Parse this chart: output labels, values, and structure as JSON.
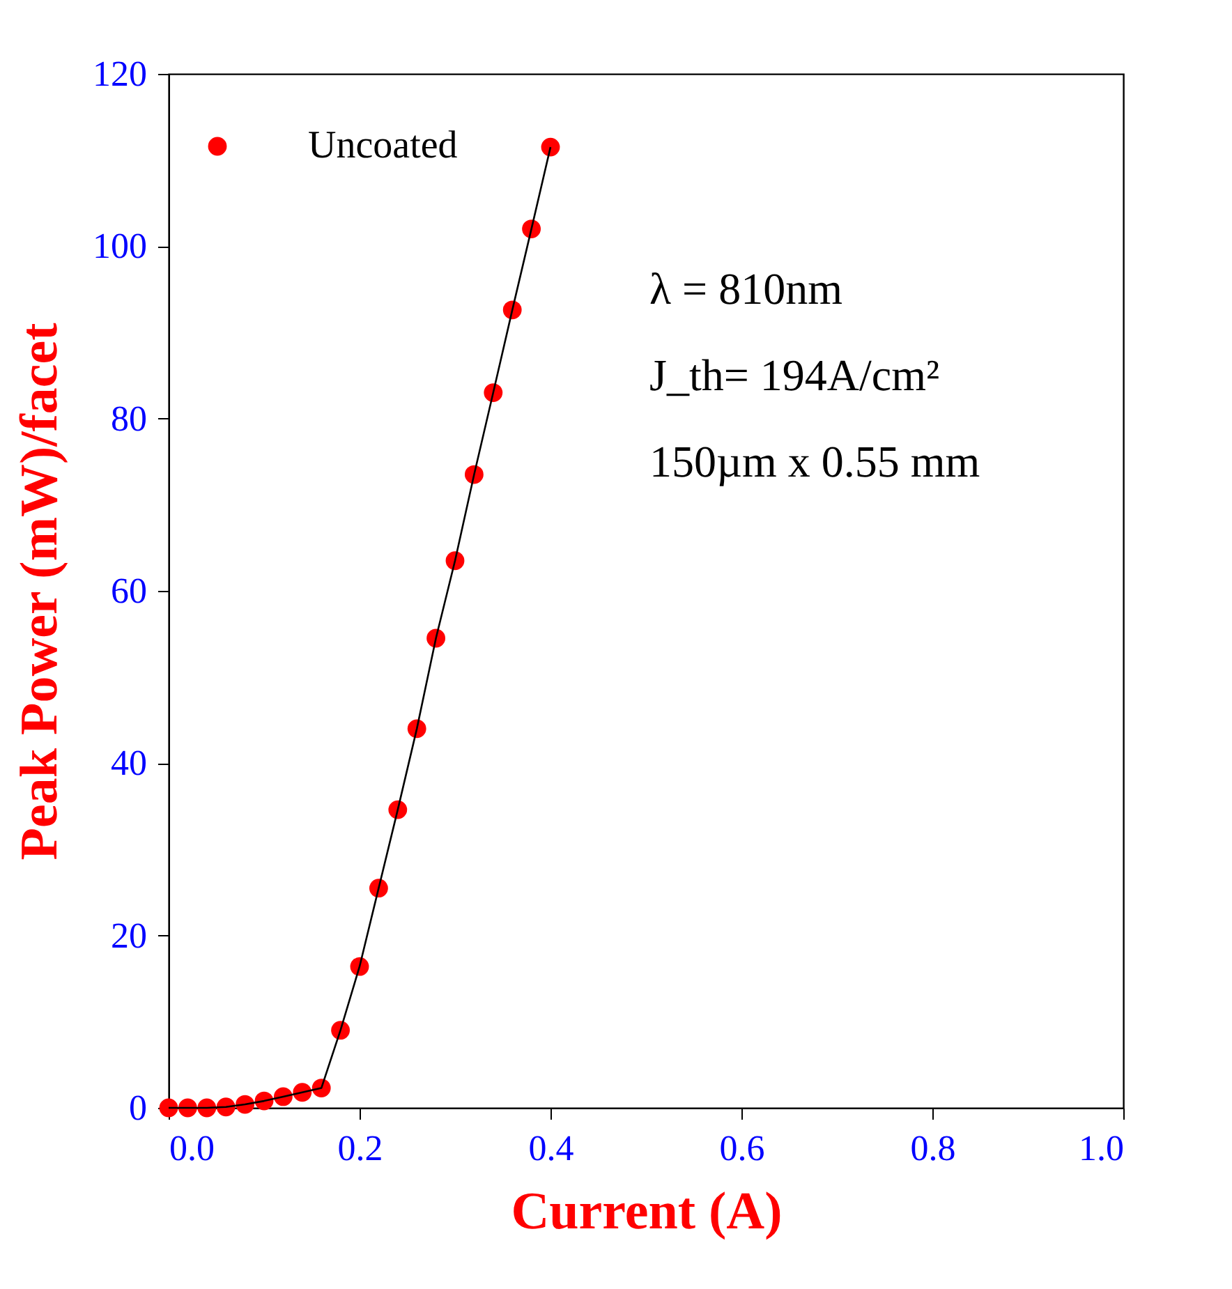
{
  "chart_data": {
    "type": "scatter",
    "xlabel": "Current (A)",
    "ylabel": "Peak Power (mW)/facet",
    "xlim": [
      0,
      1
    ],
    "xticks": [
      {
        "value": 0,
        "label": "0.0"
      },
      {
        "value": 0.2,
        "label": "0.2"
      },
      {
        "value": 0.4,
        "label": "0.4"
      },
      {
        "value": 0.6,
        "label": "0.6"
      },
      {
        "value": 0.8,
        "label": "0.8"
      },
      {
        "value": 1,
        "label": "1.0"
      }
    ],
    "ylim": [
      0,
      120
    ],
    "yticks": [
      0,
      20,
      40,
      60,
      80,
      100,
      120
    ],
    "grid": false,
    "legend": "top left",
    "marker": "circle",
    "series": [
      {
        "name": "Uncoated",
        "color": "#ff0000",
        "x": [
          0,
          0.02,
          0.04,
          0.06,
          0.08,
          0.1,
          0.12,
          0.14,
          0.16,
          0.18,
          0.2,
          0.22,
          0.24,
          0.26,
          0.28,
          0.3,
          0.32,
          0.34,
          0.36,
          0.38,
          0.4
        ],
        "values": [
          0,
          0,
          0,
          0.1,
          0.4,
          0.8,
          1.3,
          1.8,
          2.3,
          9,
          16.4,
          25.5,
          34.6,
          44,
          54.5,
          63.5,
          73.5,
          83,
          92.6,
          102,
          111.5
        ]
      },
      {
        "type": "line",
        "color": "#000000",
        "line_style": "solid",
        "marker": "none",
        "x": [
          0,
          0.02,
          0.04,
          0.06,
          0.08,
          0.1,
          0.12,
          0.14,
          0.16,
          0.18,
          0.2,
          0.22,
          0.24,
          0.26,
          0.28,
          0.3,
          0.32,
          0.34,
          0.36,
          0.38,
          0.4
        ],
        "values": [
          0,
          0,
          0,
          0.1,
          0.4,
          0.8,
          1.3,
          1.8,
          2.3,
          9,
          16.4,
          25.5,
          34.6,
          44,
          54.5,
          63.5,
          73.5,
          83,
          92.6,
          102,
          111.5
        ]
      }
    ],
    "annotations": [
      "λ = 810nm",
      "J_th= 194A/cm²",
      "150µm x 0.55 mm"
    ]
  }
}
